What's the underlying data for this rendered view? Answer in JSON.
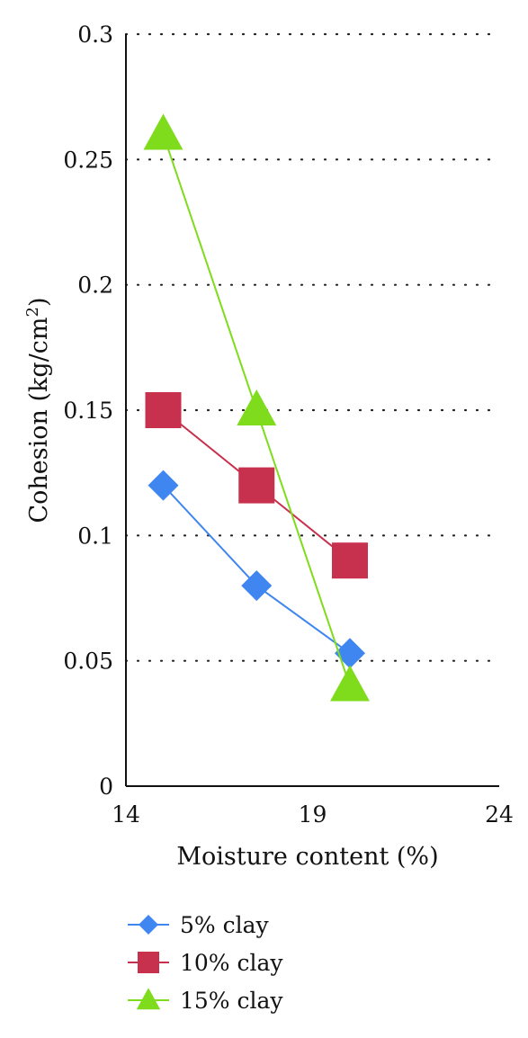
{
  "chart_data": {
    "type": "line",
    "xlabel": "Moisture content (%)",
    "ylabel": "Cohesion (kg/cm",
    "ylabel_sup": "2",
    "ylabel_end": ")",
    "xlim": [
      14,
      24
    ],
    "ylim": [
      0,
      0.3
    ],
    "x_ticks": [
      14,
      19,
      24
    ],
    "x_tick_labels": [
      "14",
      "19",
      "24"
    ],
    "y_ticks": [
      0,
      0.05,
      0.1,
      0.15,
      0.2,
      0.25,
      0.3
    ],
    "y_tick_labels": [
      "0",
      "0.05",
      "0.1",
      "0.15",
      "0.2",
      "0.25",
      "0.3"
    ],
    "grid": "horizontal dotted",
    "legend_position": "bottom",
    "series": [
      {
        "name": "5% clay",
        "marker": "diamond",
        "color": "#3f86f0",
        "x": [
          15,
          17.5,
          20
        ],
        "y": [
          0.12,
          0.08,
          0.053
        ]
      },
      {
        "name": "10% clay",
        "marker": "square",
        "color": "#c8314e",
        "x": [
          15,
          17.5,
          20
        ],
        "y": [
          0.15,
          0.12,
          0.09
        ]
      },
      {
        "name": "15% clay",
        "marker": "triangle",
        "color": "#7fdc1c",
        "x": [
          15,
          17.5,
          20
        ],
        "y": [
          0.26,
          0.15,
          0.04
        ]
      }
    ]
  }
}
